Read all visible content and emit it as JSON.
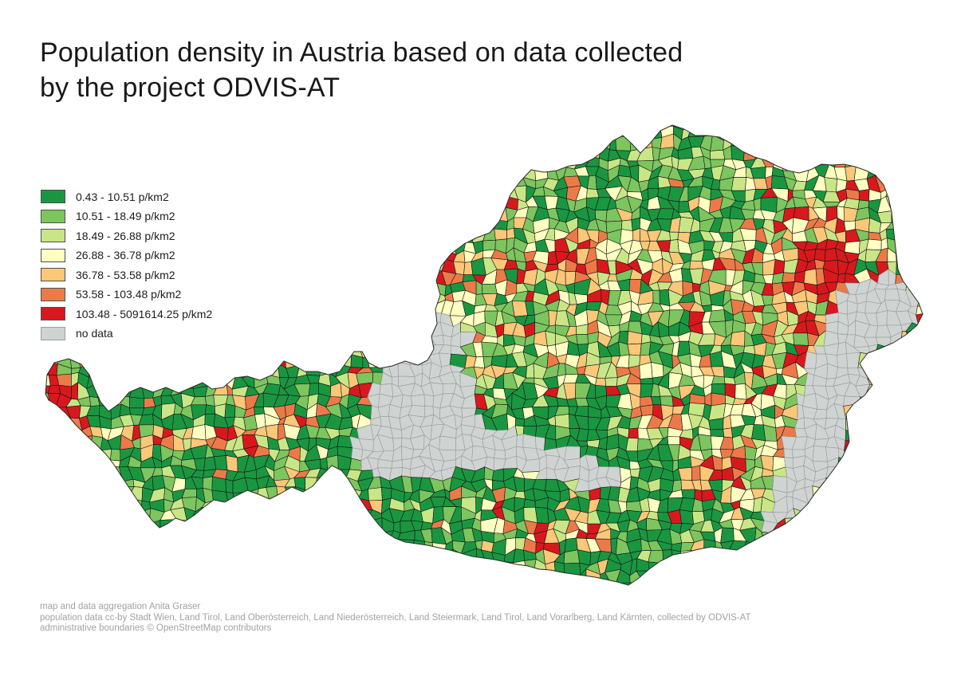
{
  "title": {
    "line1": "Population density in Austria based on data collected",
    "line2": "by the project ODVIS-AT"
  },
  "legend": {
    "items": [
      {
        "label": "0.43 - 10.51 p/km2",
        "color": "#1a9641"
      },
      {
        "label": "10.51 - 18.49 p/km2",
        "color": "#7cc55f"
      },
      {
        "label": "18.49 - 26.88 p/km2",
        "color": "#c9e687"
      },
      {
        "label": "26.88 - 36.78 p/km2",
        "color": "#feffc0"
      },
      {
        "label": "36.78 - 53.58 p/km2",
        "color": "#fbc778"
      },
      {
        "label": "53.58 - 103.48 p/km2",
        "color": "#ec7a48"
      },
      {
        "label": "103.48 - 5091614.25 p/km2",
        "color": "#d7191d"
      },
      {
        "label": "no data",
        "color": "#cfd3d1",
        "no_data": true
      }
    ]
  },
  "attribution": {
    "lines": [
      "map and data aggregation Anita Graser",
      "population data cc-by Stadt Wien, Land Tirol, Land Oberösterreich, Land Niederösterreich, Land Steiermark, Land Tirol, Land Vorarlberg, Land Kärnten, collected by ODVIS-AT",
      "administrative boundaries © OpenStreetMap contributors"
    ]
  },
  "map": {
    "background": "#ffffff",
    "municipality_border": "#151515",
    "no_data_border": "#979c9c",
    "outline": "#2b2b2b",
    "swatch_border": "#4f4f4f",
    "no_data_swatch_border": "#9aa0a0"
  }
}
